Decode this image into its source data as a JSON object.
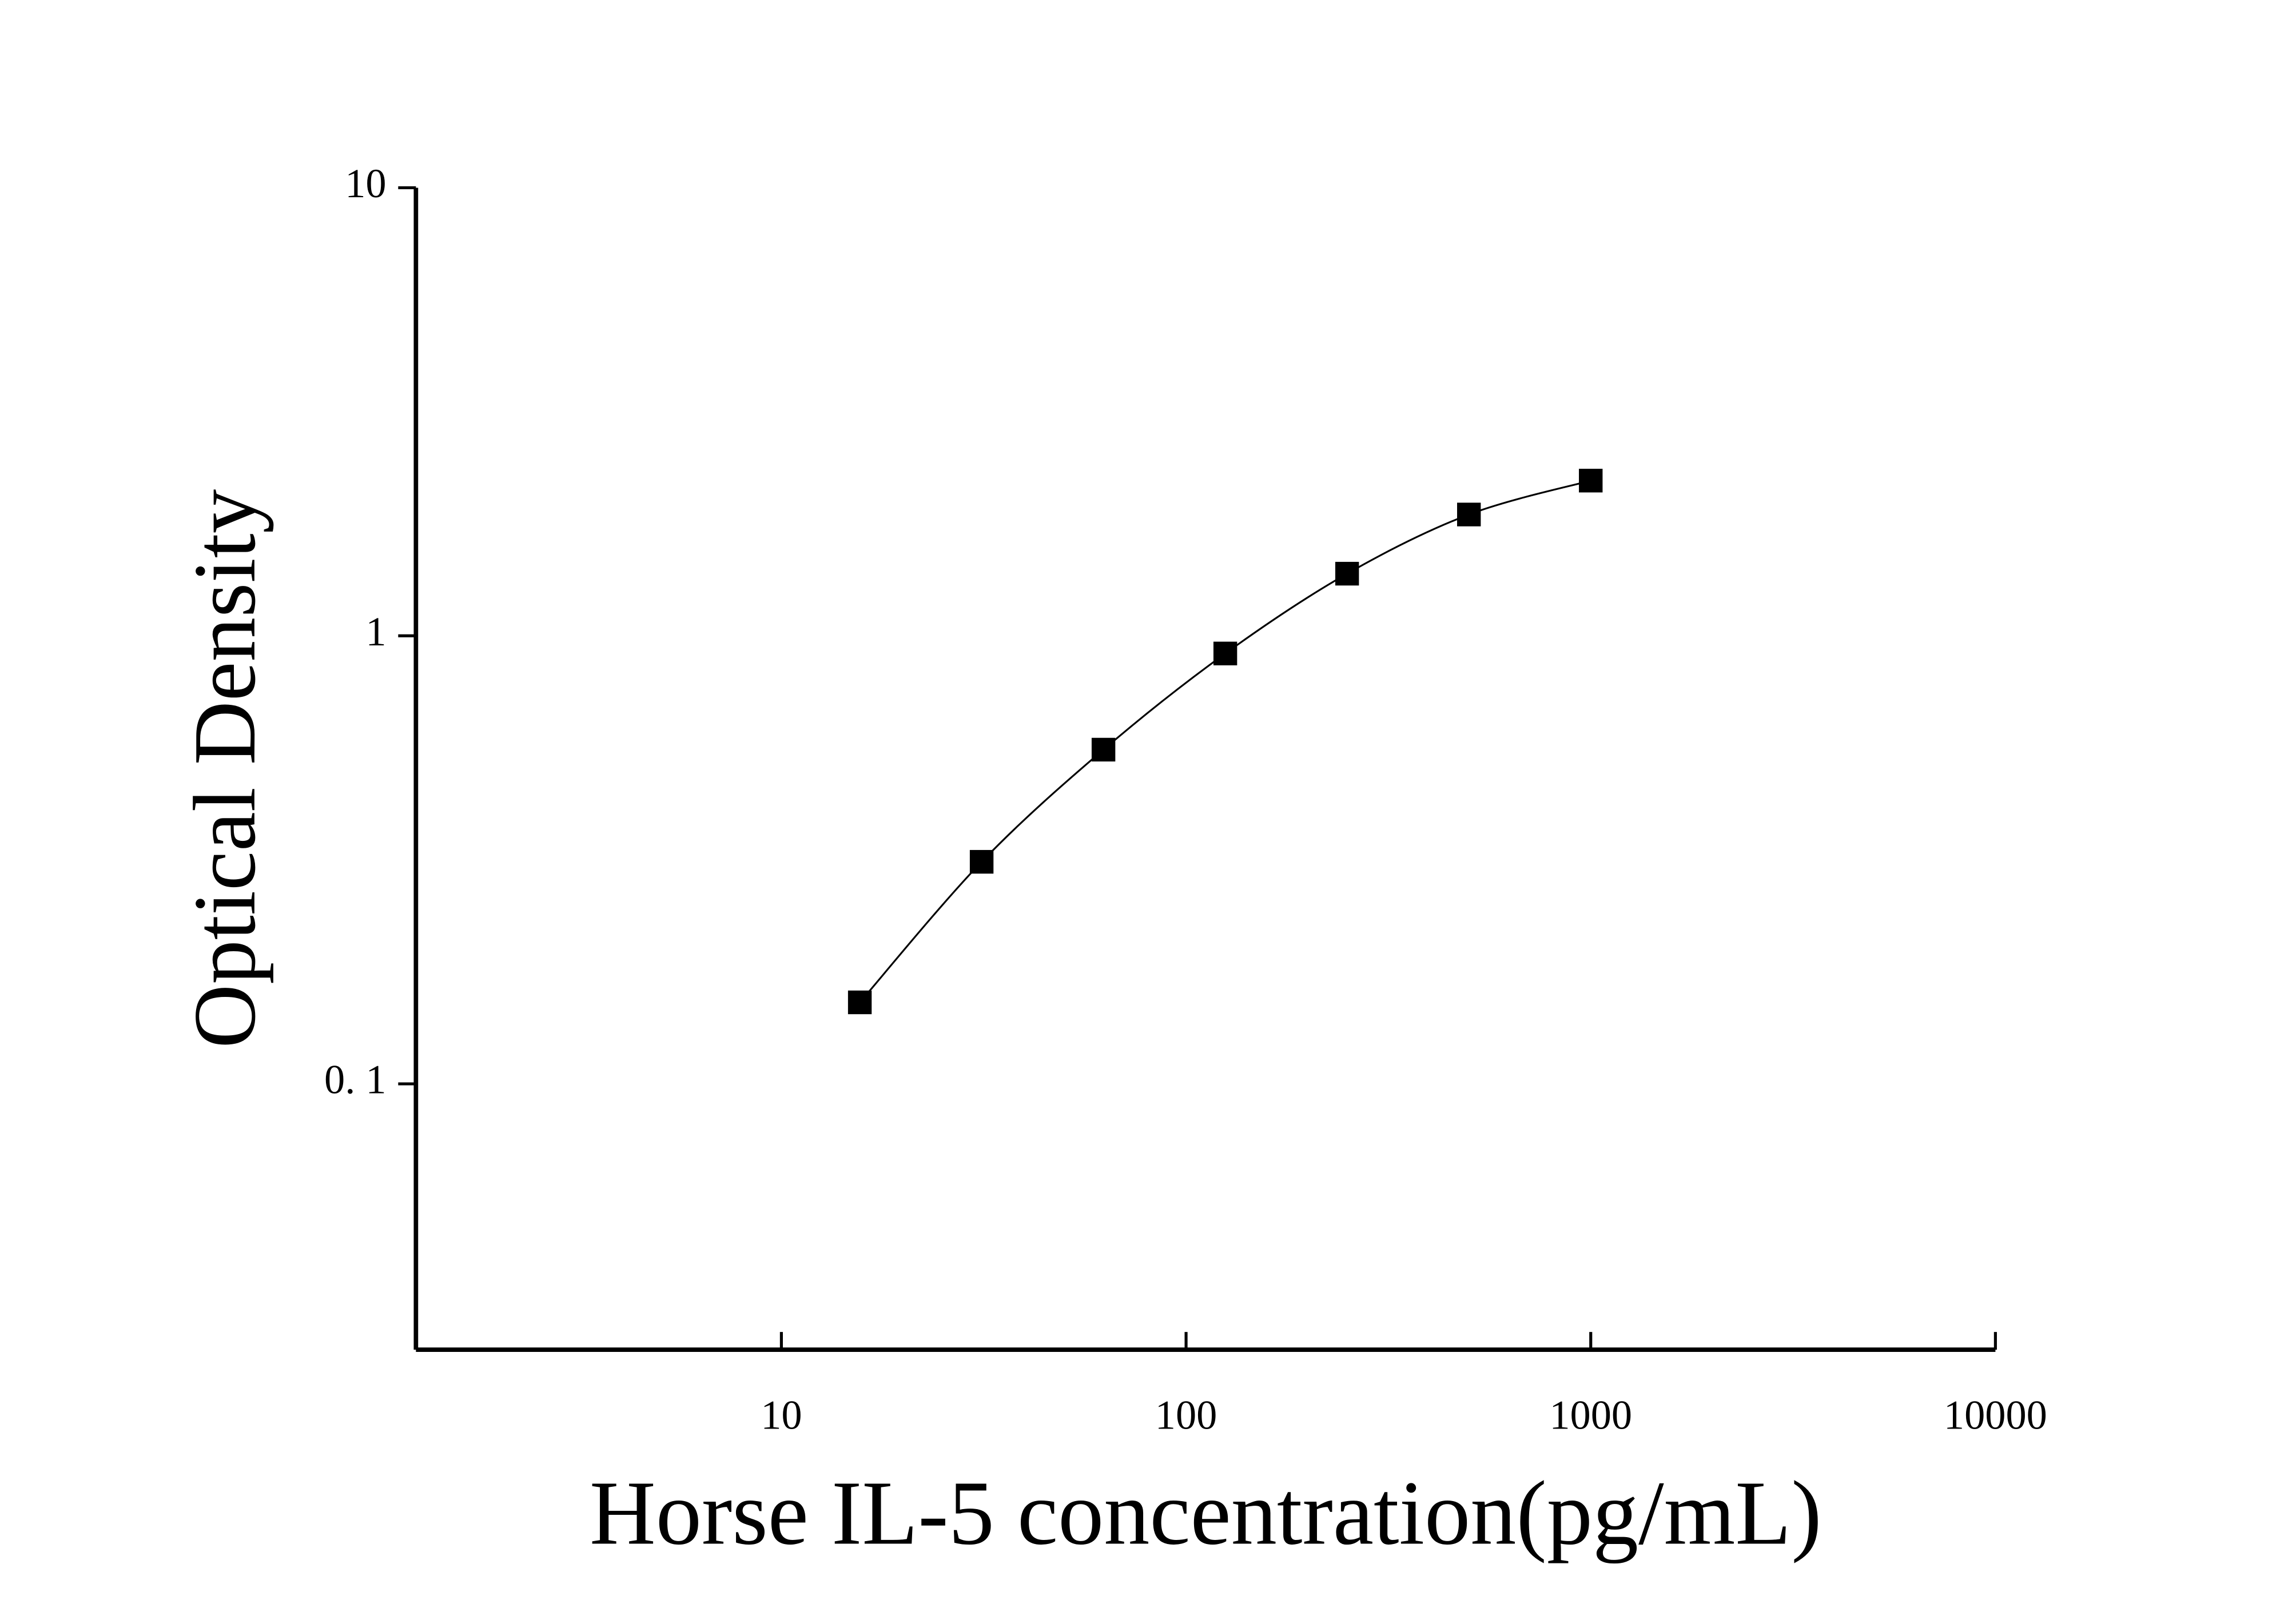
{
  "chart_data": {
    "type": "scatter",
    "x_label": "Horse IL-5 concentration(pg/mL)",
    "y_label": "Optical Density",
    "x": [
      15.625,
      31.25,
      62.5,
      125,
      250,
      500,
      1000
    ],
    "series": [
      {
        "color": "#000000",
        "values": [
          0.152,
          0.313,
          0.557,
          0.913,
          1.376,
          1.865,
          2.22
        ]
      }
    ],
    "xlim": [
      1.25,
      10000
    ],
    "ylim": [
      0.0255,
      10
    ],
    "xticks": [
      10,
      100,
      1000,
      10000
    ],
    "yticks": [
      {
        "value": 0.1,
        "label": "0. 1"
      },
      1,
      10
    ],
    "xscale": "log",
    "yscale": "log",
    "fit_curve": true
  }
}
